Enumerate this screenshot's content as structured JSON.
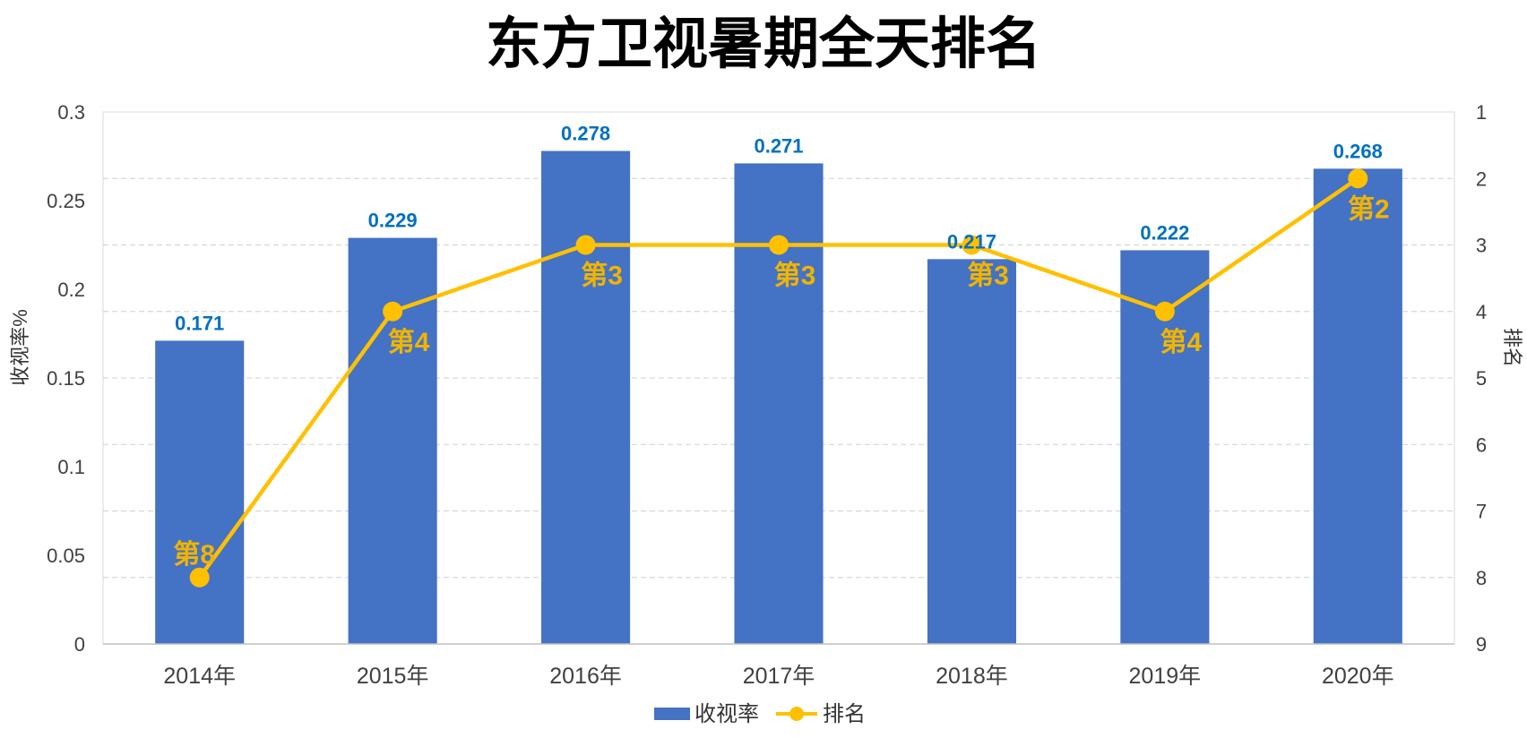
{
  "chart_data": {
    "type": "bar",
    "title": "东方卫视暑期全天排名",
    "categories": [
      "2014年",
      "2015年",
      "2016年",
      "2017年",
      "2018年",
      "2019年",
      "2020年"
    ],
    "y_left": {
      "label": "收视率%",
      "min": 0,
      "max": 0.3,
      "ticks": [
        "0",
        "0.05",
        "0.1",
        "0.15",
        "0.2",
        "0.25",
        "0.3"
      ]
    },
    "y_right": {
      "label": "排名",
      "min": 1,
      "max": 9,
      "reversed": true,
      "ticks": [
        "1",
        "2",
        "3",
        "4",
        "5",
        "6",
        "7",
        "8",
        "9"
      ]
    },
    "series": [
      {
        "name": "收视率",
        "type": "bar",
        "axis": "left",
        "values": [
          0.171,
          0.229,
          0.278,
          0.271,
          0.217,
          0.222,
          0.268
        ],
        "labels": [
          "0.171",
          "0.229",
          "0.278",
          "0.271",
          "0.217",
          "0.222",
          "0.268"
        ],
        "color": "#4472C4",
        "label_color": "#0070C0"
      },
      {
        "name": "排名",
        "type": "line",
        "axis": "right",
        "values": [
          8,
          4,
          3,
          3,
          3,
          4,
          2
        ],
        "labels": [
          "第8",
          "第4",
          "第3",
          "第3",
          "第3",
          "第4",
          "第2"
        ],
        "color": "#FFC000",
        "label_color": "#F0B400"
      }
    ],
    "grid": true,
    "legend": "bottom"
  }
}
